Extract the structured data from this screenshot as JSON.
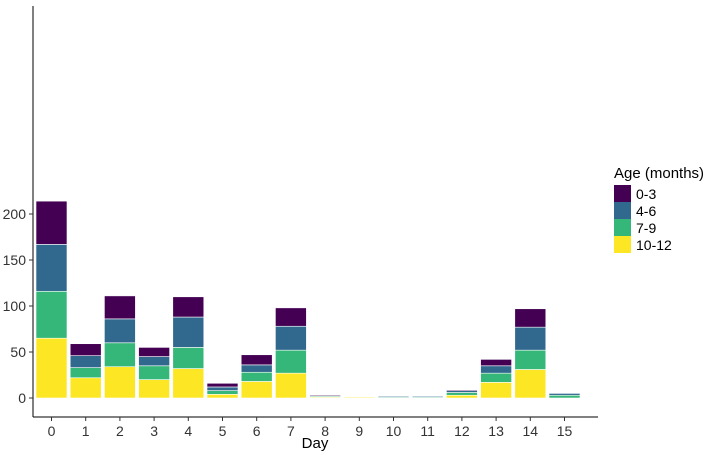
{
  "chart_data": {
    "type": "bar",
    "stacked": true,
    "title": "",
    "xlabel": "Day",
    "ylabel": "",
    "ylim": [
      0,
      222
    ],
    "yticks": [
      0,
      50,
      100,
      150,
      200
    ],
    "categories": [
      "0",
      "1",
      "2",
      "3",
      "4",
      "5",
      "6",
      "7",
      "8",
      "9",
      "10",
      "11",
      "12",
      "13",
      "14",
      "15"
    ],
    "legend": {
      "title": "Age (months)",
      "position": "right"
    },
    "grid": false,
    "series": [
      {
        "name": "10-12",
        "color": "#fde725",
        "values": [
          65,
          22,
          34,
          20,
          32,
          4,
          18,
          27,
          1,
          1,
          0,
          0,
          3,
          17,
          31,
          0
        ]
      },
      {
        "name": "7-9",
        "color": "#35b779",
        "values": [
          51,
          11,
          26,
          15,
          23,
          4,
          10,
          25,
          1,
          0,
          1,
          1,
          3,
          10,
          21,
          3
        ]
      },
      {
        "name": "4-6",
        "color": "#31688e",
        "values": [
          51,
          13,
          26,
          10,
          33,
          4,
          8,
          26,
          0,
          0,
          1,
          1,
          2,
          8,
          25,
          2
        ]
      },
      {
        "name": "0-3",
        "color": "#440154",
        "values": [
          47,
          13,
          25,
          10,
          22,
          4,
          11,
          20,
          1,
          0,
          0,
          0,
          1,
          7,
          20,
          0
        ]
      }
    ],
    "legend_order": [
      "0-3",
      "4-6",
      "7-9",
      "10-12"
    ]
  }
}
